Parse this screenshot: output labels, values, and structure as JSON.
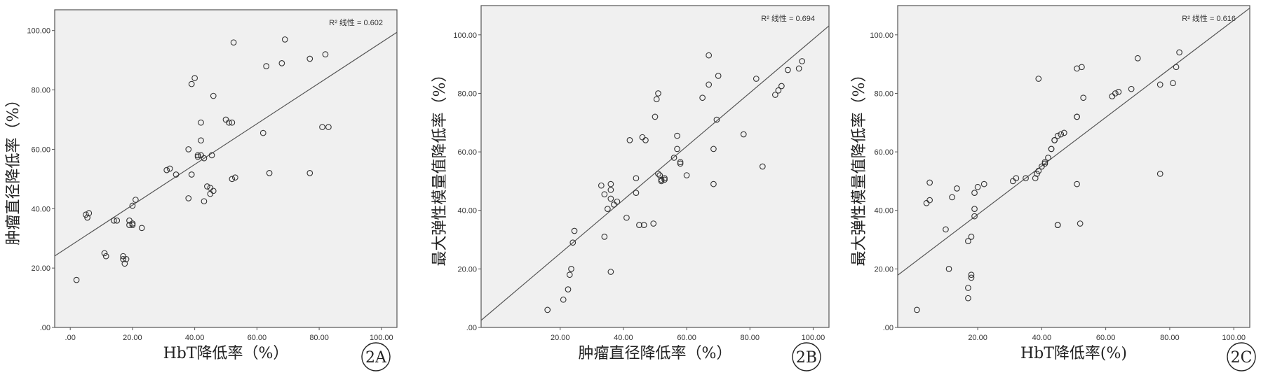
{
  "chart_data": [
    {
      "type": "scatter",
      "badge": "2A",
      "xlabel": "HbT降低率（%）",
      "ylabel": "肿瘤直径降低率（%）",
      "r2_label": "R² 线性 = 0.602",
      "xlim": [
        -5,
        105
      ],
      "ylim": [
        0,
        107
      ],
      "xticks": [
        ".00",
        "20.00",
        "40.00",
        "60.00",
        "80.00",
        "100.00"
      ],
      "yticks": [
        ".00",
        "20.00",
        "40.00",
        "60.00",
        "80.00",
        "100.00"
      ],
      "fit_line": {
        "intercept": 27.5,
        "slope": 0.685
      },
      "points": [
        [
          2,
          16
        ],
        [
          5,
          38
        ],
        [
          5.5,
          37
        ],
        [
          6,
          38.5
        ],
        [
          11,
          25
        ],
        [
          11.5,
          24
        ],
        [
          14,
          36
        ],
        [
          15,
          36
        ],
        [
          17,
          24
        ],
        [
          17.5,
          21.5
        ],
        [
          17,
          23
        ],
        [
          18,
          23
        ],
        [
          19,
          34.5
        ],
        [
          19,
          36
        ],
        [
          20,
          34.5
        ],
        [
          20,
          41
        ],
        [
          20,
          35
        ],
        [
          21,
          43
        ],
        [
          23,
          33.5
        ],
        [
          31,
          53
        ],
        [
          32,
          53.5
        ],
        [
          34,
          51.5
        ],
        [
          38,
          43.5
        ],
        [
          38,
          60
        ],
        [
          39,
          82
        ],
        [
          39,
          51.5
        ],
        [
          40,
          84
        ],
        [
          41,
          58
        ],
        [
          41,
          57.5
        ],
        [
          42,
          58
        ],
        [
          42,
          63
        ],
        [
          42,
          69
        ],
        [
          43,
          57
        ],
        [
          43,
          42.5
        ],
        [
          44,
          47.5
        ],
        [
          45,
          45
        ],
        [
          45,
          47
        ],
        [
          45.5,
          58
        ],
        [
          46,
          46
        ],
        [
          46,
          78
        ],
        [
          50,
          70
        ],
        [
          51,
          69
        ],
        [
          52,
          50
        ],
        [
          52,
          69
        ],
        [
          52.5,
          96
        ],
        [
          53,
          50.5
        ],
        [
          62,
          65.5
        ],
        [
          63,
          88
        ],
        [
          64,
          52
        ],
        [
          68,
          89
        ],
        [
          69,
          97
        ],
        [
          77,
          90.5
        ],
        [
          77,
          52
        ],
        [
          81,
          67.5
        ],
        [
          82,
          92
        ],
        [
          83,
          67.5
        ]
      ]
    },
    {
      "type": "scatter",
      "badge": "2B",
      "xlabel": "肿瘤直径降低率（%）",
      "ylabel": "最大弹性模量值降低率（%）",
      "r2_label": "R² 线性 = 0.694",
      "xlim": [
        -5,
        105
      ],
      "ylim": [
        0,
        110
      ],
      "xticks": [
        "20.00",
        "40.00",
        "60.00",
        "80.00",
        "100.00"
      ],
      "yticks": [
        ".00",
        "20.00",
        "40.00",
        "60.00",
        "80.00",
        "100.00"
      ],
      "fit_line": {
        "intercept": 7,
        "slope": 0.915
      },
      "points": [
        [
          16,
          6
        ],
        [
          21,
          9.5
        ],
        [
          22.5,
          13
        ],
        [
          23,
          18
        ],
        [
          23.5,
          20
        ],
        [
          24,
          29
        ],
        [
          24.5,
          33
        ],
        [
          33,
          48.5
        ],
        [
          34,
          45.5
        ],
        [
          34,
          31
        ],
        [
          35,
          40.5
        ],
        [
          36,
          49
        ],
        [
          36,
          47
        ],
        [
          36,
          19
        ],
        [
          36,
          44
        ],
        [
          37,
          42
        ],
        [
          38,
          43
        ],
        [
          41,
          37.5
        ],
        [
          42,
          64
        ],
        [
          44,
          51
        ],
        [
          44,
          46
        ],
        [
          45,
          35
        ],
        [
          46,
          65
        ],
        [
          46.5,
          35
        ],
        [
          47,
          64
        ],
        [
          49.5,
          35.5
        ],
        [
          50,
          72
        ],
        [
          50.5,
          78
        ],
        [
          51,
          52.5
        ],
        [
          51,
          80
        ],
        [
          51.5,
          52
        ],
        [
          52,
          50.5
        ],
        [
          52,
          50
        ],
        [
          53,
          50.5
        ],
        [
          53,
          51
        ],
        [
          56,
          58
        ],
        [
          57,
          61
        ],
        [
          57,
          65.5
        ],
        [
          58,
          56
        ],
        [
          58,
          56.5
        ],
        [
          60,
          52
        ],
        [
          65,
          78.5
        ],
        [
          67,
          93
        ],
        [
          67,
          83
        ],
        [
          68.5,
          49
        ],
        [
          68.5,
          61
        ],
        [
          69.5,
          71
        ],
        [
          70,
          86
        ],
        [
          78,
          66
        ],
        [
          82,
          85
        ],
        [
          84,
          55
        ],
        [
          88,
          79.5
        ],
        [
          89,
          81
        ],
        [
          90,
          82.5
        ],
        [
          92,
          88
        ],
        [
          95.5,
          88.5
        ],
        [
          96.5,
          91
        ]
      ]
    },
    {
      "type": "scatter",
      "badge": "2C",
      "xlabel": "HbT降低率(%)",
      "ylabel": "最大弹性模量值降低率（%）",
      "r2_label": "R² 线性 = 0.616",
      "xlim": [
        -5,
        105
      ],
      "ylim": [
        0,
        110
      ],
      "xticks": [
        "20.00",
        "40.00",
        "60.00",
        "80.00",
        "100.00"
      ],
      "yticks": [
        ".00",
        "20.00",
        "40.00",
        "60.00",
        "80.00",
        "100.00"
      ],
      "fit_line": {
        "intercept": 22,
        "slope": 0.83
      },
      "points": [
        [
          1,
          6
        ],
        [
          4,
          42.5
        ],
        [
          5,
          43.5
        ],
        [
          5,
          49.5
        ],
        [
          10,
          33.5
        ],
        [
          11,
          20
        ],
        [
          12,
          44.5
        ],
        [
          13.5,
          47.5
        ],
        [
          17,
          10
        ],
        [
          17,
          13.5
        ],
        [
          17,
          29.5
        ],
        [
          18,
          31
        ],
        [
          18,
          18
        ],
        [
          18,
          17
        ],
        [
          19,
          38
        ],
        [
          19,
          40.5
        ],
        [
          19,
          46
        ],
        [
          20,
          48
        ],
        [
          22,
          49
        ],
        [
          31,
          50
        ],
        [
          32,
          51
        ],
        [
          35,
          51
        ],
        [
          38,
          51
        ],
        [
          38.5,
          52.5
        ],
        [
          39,
          53.5
        ],
        [
          39,
          85
        ],
        [
          40,
          55
        ],
        [
          41,
          56
        ],
        [
          41,
          56.5
        ],
        [
          42,
          58
        ],
        [
          43,
          61
        ],
        [
          43,
          61
        ],
        [
          44,
          64
        ],
        [
          44,
          64
        ],
        [
          45,
          65.5
        ],
        [
          45,
          35
        ],
        [
          45,
          35
        ],
        [
          46,
          66
        ],
        [
          47,
          66.5
        ],
        [
          51,
          49
        ],
        [
          51,
          72
        ],
        [
          51,
          72
        ],
        [
          51,
          88.5
        ],
        [
          52,
          35.5
        ],
        [
          52.5,
          89
        ],
        [
          53,
          78.5
        ],
        [
          62,
          79
        ],
        [
          63,
          80
        ],
        [
          64,
          80.5
        ],
        [
          68,
          81.5
        ],
        [
          70,
          92
        ],
        [
          77,
          83
        ],
        [
          77,
          52.5
        ],
        [
          81,
          83.5
        ],
        [
          82,
          89
        ],
        [
          83,
          94
        ]
      ]
    }
  ]
}
